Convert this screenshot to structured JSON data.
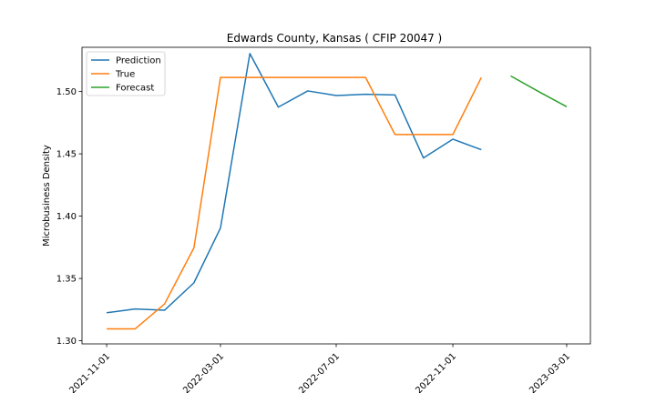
{
  "chart_data": {
    "type": "line",
    "title": "Edwards County, Kansas ( CFIP 20047 )",
    "xlabel": "",
    "ylabel": "Microbusiness Density",
    "xlim": [
      "2021-10-06",
      "2023-03-26"
    ],
    "ylim": [
      1.2975,
      1.5355
    ],
    "x_ticks": [
      "2021-11-01",
      "2022-03-01",
      "2022-07-01",
      "2022-11-01",
      "2023-03-01"
    ],
    "y_ticks": [
      "1.30",
      "1.35",
      "1.40",
      "1.45",
      "1.50"
    ],
    "legend_position": "top-left",
    "series": [
      {
        "name": "Prediction",
        "color": "#1f77b4",
        "points": [
          [
            "2021-11-01",
            1.3225
          ],
          [
            "2021-12-01",
            1.3255
          ],
          [
            "2022-01-01",
            1.3245
          ],
          [
            "2022-02-01",
            1.3465
          ],
          [
            "2022-03-01",
            1.3905
          ],
          [
            "2022-04-01",
            1.5305
          ],
          [
            "2022-05-01",
            1.4875
          ],
          [
            "2022-06-01",
            1.5005
          ],
          [
            "2022-07-01",
            1.4968
          ],
          [
            "2022-08-01",
            1.4978
          ],
          [
            "2022-09-01",
            1.4973
          ],
          [
            "2022-10-01",
            1.4467
          ],
          [
            "2022-11-01",
            1.4618
          ],
          [
            "2022-12-01",
            1.4533
          ]
        ]
      },
      {
        "name": "True",
        "color": "#ff7f0e",
        "points": [
          [
            "2021-11-01",
            1.3095
          ],
          [
            "2021-12-01",
            1.3095
          ],
          [
            "2022-01-01",
            1.3295
          ],
          [
            "2022-02-01",
            1.3745
          ],
          [
            "2022-03-01",
            1.5113
          ],
          [
            "2022-04-01",
            1.5113
          ],
          [
            "2022-05-01",
            1.5113
          ],
          [
            "2022-06-01",
            1.5113
          ],
          [
            "2022-07-01",
            1.5113
          ],
          [
            "2022-08-01",
            1.5113
          ],
          [
            "2022-09-01",
            1.4655
          ],
          [
            "2022-10-01",
            1.4655
          ],
          [
            "2022-11-01",
            1.4655
          ],
          [
            "2022-12-01",
            1.5113
          ]
        ]
      },
      {
        "name": "Forecast",
        "color": "#2ca02c",
        "points": [
          [
            "2023-01-01",
            1.5125
          ],
          [
            "2023-02-01",
            1.4993
          ],
          [
            "2023-03-01",
            1.4878
          ]
        ]
      }
    ]
  }
}
